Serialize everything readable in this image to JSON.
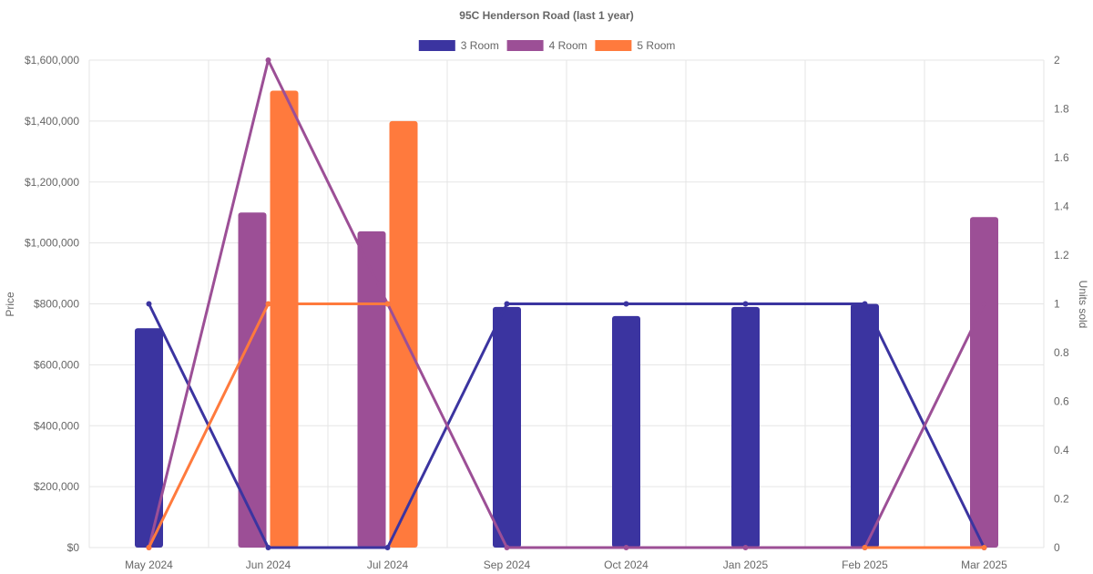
{
  "chart_data": {
    "type": "bar",
    "title": "95C Henderson Road (last 1 year)",
    "categories": [
      "May 2024",
      "Jun 2024",
      "Jul 2024",
      "Sep 2024",
      "Oct 2024",
      "Jan 2025",
      "Feb 2025",
      "Mar 2025"
    ],
    "ylabel": "Price",
    "y2label": "Units sold",
    "ylim": [
      0,
      1600000
    ],
    "y2lim": [
      0,
      2
    ],
    "y_ticks": [
      "$0",
      "$200,000",
      "$400,000",
      "$600,000",
      "$800,000",
      "$1,000,000",
      "$1,200,000",
      "$1,400,000",
      "$1,600,000"
    ],
    "y2_ticks": [
      "0",
      "0.2",
      "0.4",
      "0.6",
      "0.8",
      "1",
      "1.2",
      "1.4",
      "1.6",
      "1.8",
      "2"
    ],
    "grid": true,
    "legend_position": "top",
    "series": [
      {
        "name": "3 Room",
        "color": "#3b34a0",
        "price": [
          720000,
          null,
          null,
          790000,
          760000,
          790000,
          800000,
          null
        ],
        "units_sold": [
          1,
          0,
          0,
          1,
          1,
          1,
          1,
          0
        ]
      },
      {
        "name": "4 Room",
        "color": "#9c4f96",
        "price": [
          null,
          1100000,
          1038000,
          null,
          null,
          null,
          null,
          1085000
        ],
        "units_sold": [
          0,
          2,
          1,
          0,
          0,
          0,
          0,
          1
        ]
      },
      {
        "name": "5 Room",
        "color": "#ff7a3d",
        "price": [
          null,
          1500000,
          1400000,
          null,
          null,
          null,
          null,
          null
        ],
        "units_sold": [
          0,
          1,
          1,
          null,
          null,
          null,
          0,
          0
        ]
      }
    ]
  }
}
